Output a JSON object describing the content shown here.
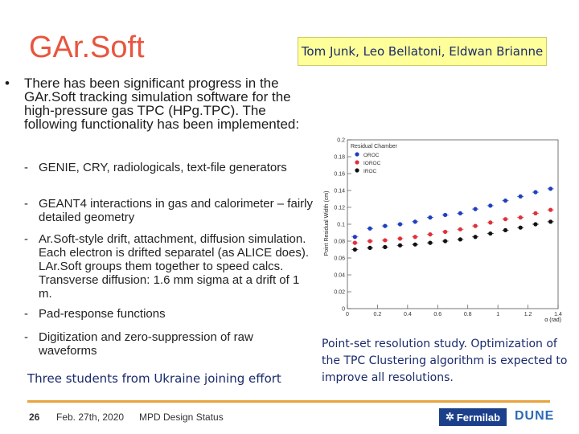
{
  "slide": {
    "title": "GAr.Soft",
    "authors": "Tom Junk, Leo Bellatoni, Eldwan Brianne",
    "bullet_symbol": "•",
    "bullet_text": "There has been significant progress in the GAr.Soft tracking simulation software for the high-pressure gas TPC (HPg.TPC). The following functionality has been implemented:",
    "sub_items": [
      "GENIE, CRY, radiologicals, text-file generators",
      "GEANT4 interactions in gas and calorimeter – fairly detailed geometry",
      "Ar.Soft-style drift, attachment, diffusion simulation. Each electron is drifted separatel (as ALICE does). LAr.Soft groups them together to speed calcs. Transverse diffusion: 1.6 mm sigma at a drift of 1 m.",
      "Pad-response functions",
      "Digitization and zero-suppression of raw waveforms"
    ],
    "dash": "-",
    "students_note": "Three students from Ukraine joining effort",
    "caption": "Point-set resolution study. Optimization of the TPC Clustering algorithm is expected to improve all resolutions.",
    "footer": {
      "page_number": "26",
      "date": "Feb. 27th, 2020",
      "event": "MPD Design Status"
    },
    "logos": {
      "fermilab": "Fermilab",
      "dune": "DUNE"
    },
    "colors": {
      "title": "#e8553e",
      "highlight": "#ffff99",
      "footer_rule": "#e8a33d",
      "caption_text": "#1a2a6c"
    }
  },
  "chart_data": {
    "type": "scatter",
    "title": "",
    "xlabel": "α (rad)",
    "ylabel": "Point Residual Width (cm)",
    "xlim": [
      0,
      1.4
    ],
    "ylim": [
      0,
      0.2
    ],
    "x_ticks": [
      0,
      0.2,
      0.4,
      0.6,
      0.8,
      1,
      1.2,
      1.4
    ],
    "y_ticks": [
      0,
      0.02,
      0.04,
      0.06,
      0.08,
      0.1,
      0.12,
      0.14,
      0.16,
      0.18,
      0.2
    ],
    "legend_title": "Residual Chamber",
    "legend_position": "top-left",
    "x": [
      0.05,
      0.15,
      0.25,
      0.35,
      0.45,
      0.55,
      0.65,
      0.75,
      0.85,
      0.95,
      1.05,
      1.15,
      1.25,
      1.35
    ],
    "series": [
      {
        "name": "OROC",
        "color": "#1f3fbf",
        "values": [
          0.085,
          0.095,
          0.098,
          0.1,
          0.103,
          0.108,
          0.111,
          0.113,
          0.118,
          0.122,
          0.128,
          0.133,
          0.138,
          0.142
        ]
      },
      {
        "name": "IOROC",
        "color": "#e0303a",
        "values": [
          0.078,
          0.08,
          0.081,
          0.083,
          0.085,
          0.088,
          0.091,
          0.094,
          0.098,
          0.102,
          0.106,
          0.108,
          0.113,
          0.117
        ]
      },
      {
        "name": "IROC",
        "color": "#111111",
        "values": [
          0.07,
          0.072,
          0.073,
          0.075,
          0.076,
          0.078,
          0.08,
          0.082,
          0.085,
          0.089,
          0.093,
          0.096,
          0.1,
          0.103
        ]
      }
    ]
  }
}
